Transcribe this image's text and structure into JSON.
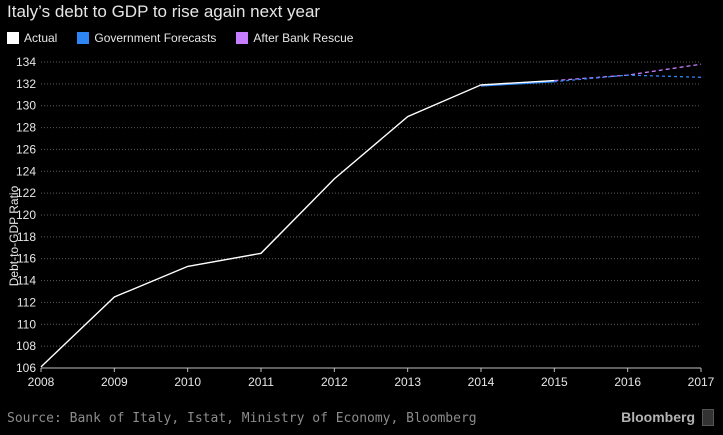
{
  "chart_data": {
    "type": "line",
    "title": "Italy’s debt to GDP to rise again next year",
    "ylabel": "Debt-to-GDP Ratio",
    "xlim": [
      2008,
      2017
    ],
    "ylim": [
      106,
      134
    ],
    "x_ticks": [
      2008,
      2009,
      2010,
      2011,
      2012,
      2013,
      2014,
      2015,
      2016,
      2017
    ],
    "y_ticks": [
      106,
      108,
      110,
      112,
      114,
      116,
      118,
      120,
      122,
      124,
      126,
      128,
      130,
      132,
      134
    ],
    "grid": "horizontal-dotted",
    "legend_position": "top-left",
    "series": [
      {
        "name": "Actual",
        "color": "#ffffff",
        "style": "solid",
        "x": [
          2008,
          2009,
          2010,
          2011,
          2012,
          2013,
          2014,
          2015
        ],
        "y": [
          106.1,
          112.5,
          115.3,
          116.5,
          123.3,
          129.0,
          131.9,
          132.3
        ]
      },
      {
        "name": "Government Forecasts",
        "color": "#2e86f5",
        "style": "solid-then-dashed",
        "x": [
          2014,
          2015,
          2016,
          2017
        ],
        "y": [
          131.8,
          132.2,
          132.8,
          132.6
        ]
      },
      {
        "name": "After Bank Rescue",
        "color": "#c77dff",
        "style": "dashed",
        "x": [
          2015,
          2016,
          2017
        ],
        "y": [
          132.3,
          132.8,
          133.8
        ]
      }
    ],
    "source": "Source: Bank of Italy, Istat, Ministry of Economy, Bloomberg"
  },
  "brand": "Bloomberg"
}
